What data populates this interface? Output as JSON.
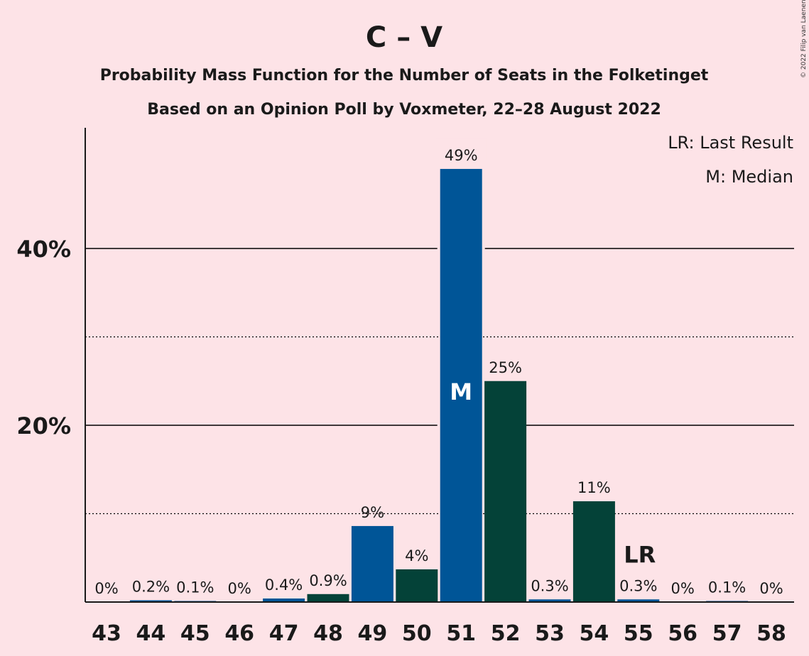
{
  "title": "C – V",
  "subtitle_1": "Probability Mass Function for the Number of Seats in the Folketinget",
  "subtitle_2": "Based on an Opinion Poll by Voxmeter, 22–28 August 2022",
  "legend": {
    "last_result": "LR: Last Result",
    "median": "M: Median"
  },
  "copyright": "© 2022 Filip van Laenen",
  "colors": {
    "background": "#fde3e7",
    "blue": "#005597",
    "green": "#044238",
    "axis": "#1a1a1a"
  },
  "chart_data": {
    "type": "bar",
    "categories": [
      "43",
      "44",
      "45",
      "46",
      "47",
      "48",
      "49",
      "50",
      "51",
      "52",
      "53",
      "54",
      "55",
      "56",
      "57",
      "58"
    ],
    "values": [
      0,
      0.2,
      0.1,
      0,
      0.4,
      0.9,
      8.6,
      3.7,
      49,
      25,
      0.3,
      11.4,
      0.3,
      0,
      0.1,
      0
    ],
    "data_labels": [
      "0%",
      "0.2%",
      "0.1%",
      "0%",
      "0.4%",
      "0.9%",
      "9%",
      "4%",
      "49%",
      "25%",
      "0.3%",
      "11%",
      "0.3%",
      "0%",
      "0.1%",
      "0%"
    ],
    "bar_colors": [
      "blue",
      "blue",
      "blue",
      "green",
      "blue",
      "green",
      "blue",
      "green",
      "blue",
      "green",
      "blue",
      "green",
      "blue",
      "green",
      "blue",
      "green"
    ],
    "yticks": [
      {
        "value": 20,
        "label": "20%"
      },
      {
        "value": 40,
        "label": "40%"
      }
    ],
    "minor_gridlines": [
      10,
      30
    ],
    "ylim": [
      0,
      53
    ],
    "median": {
      "category": "51",
      "label": "M"
    },
    "last_result": {
      "category": "55",
      "label": "LR"
    }
  }
}
